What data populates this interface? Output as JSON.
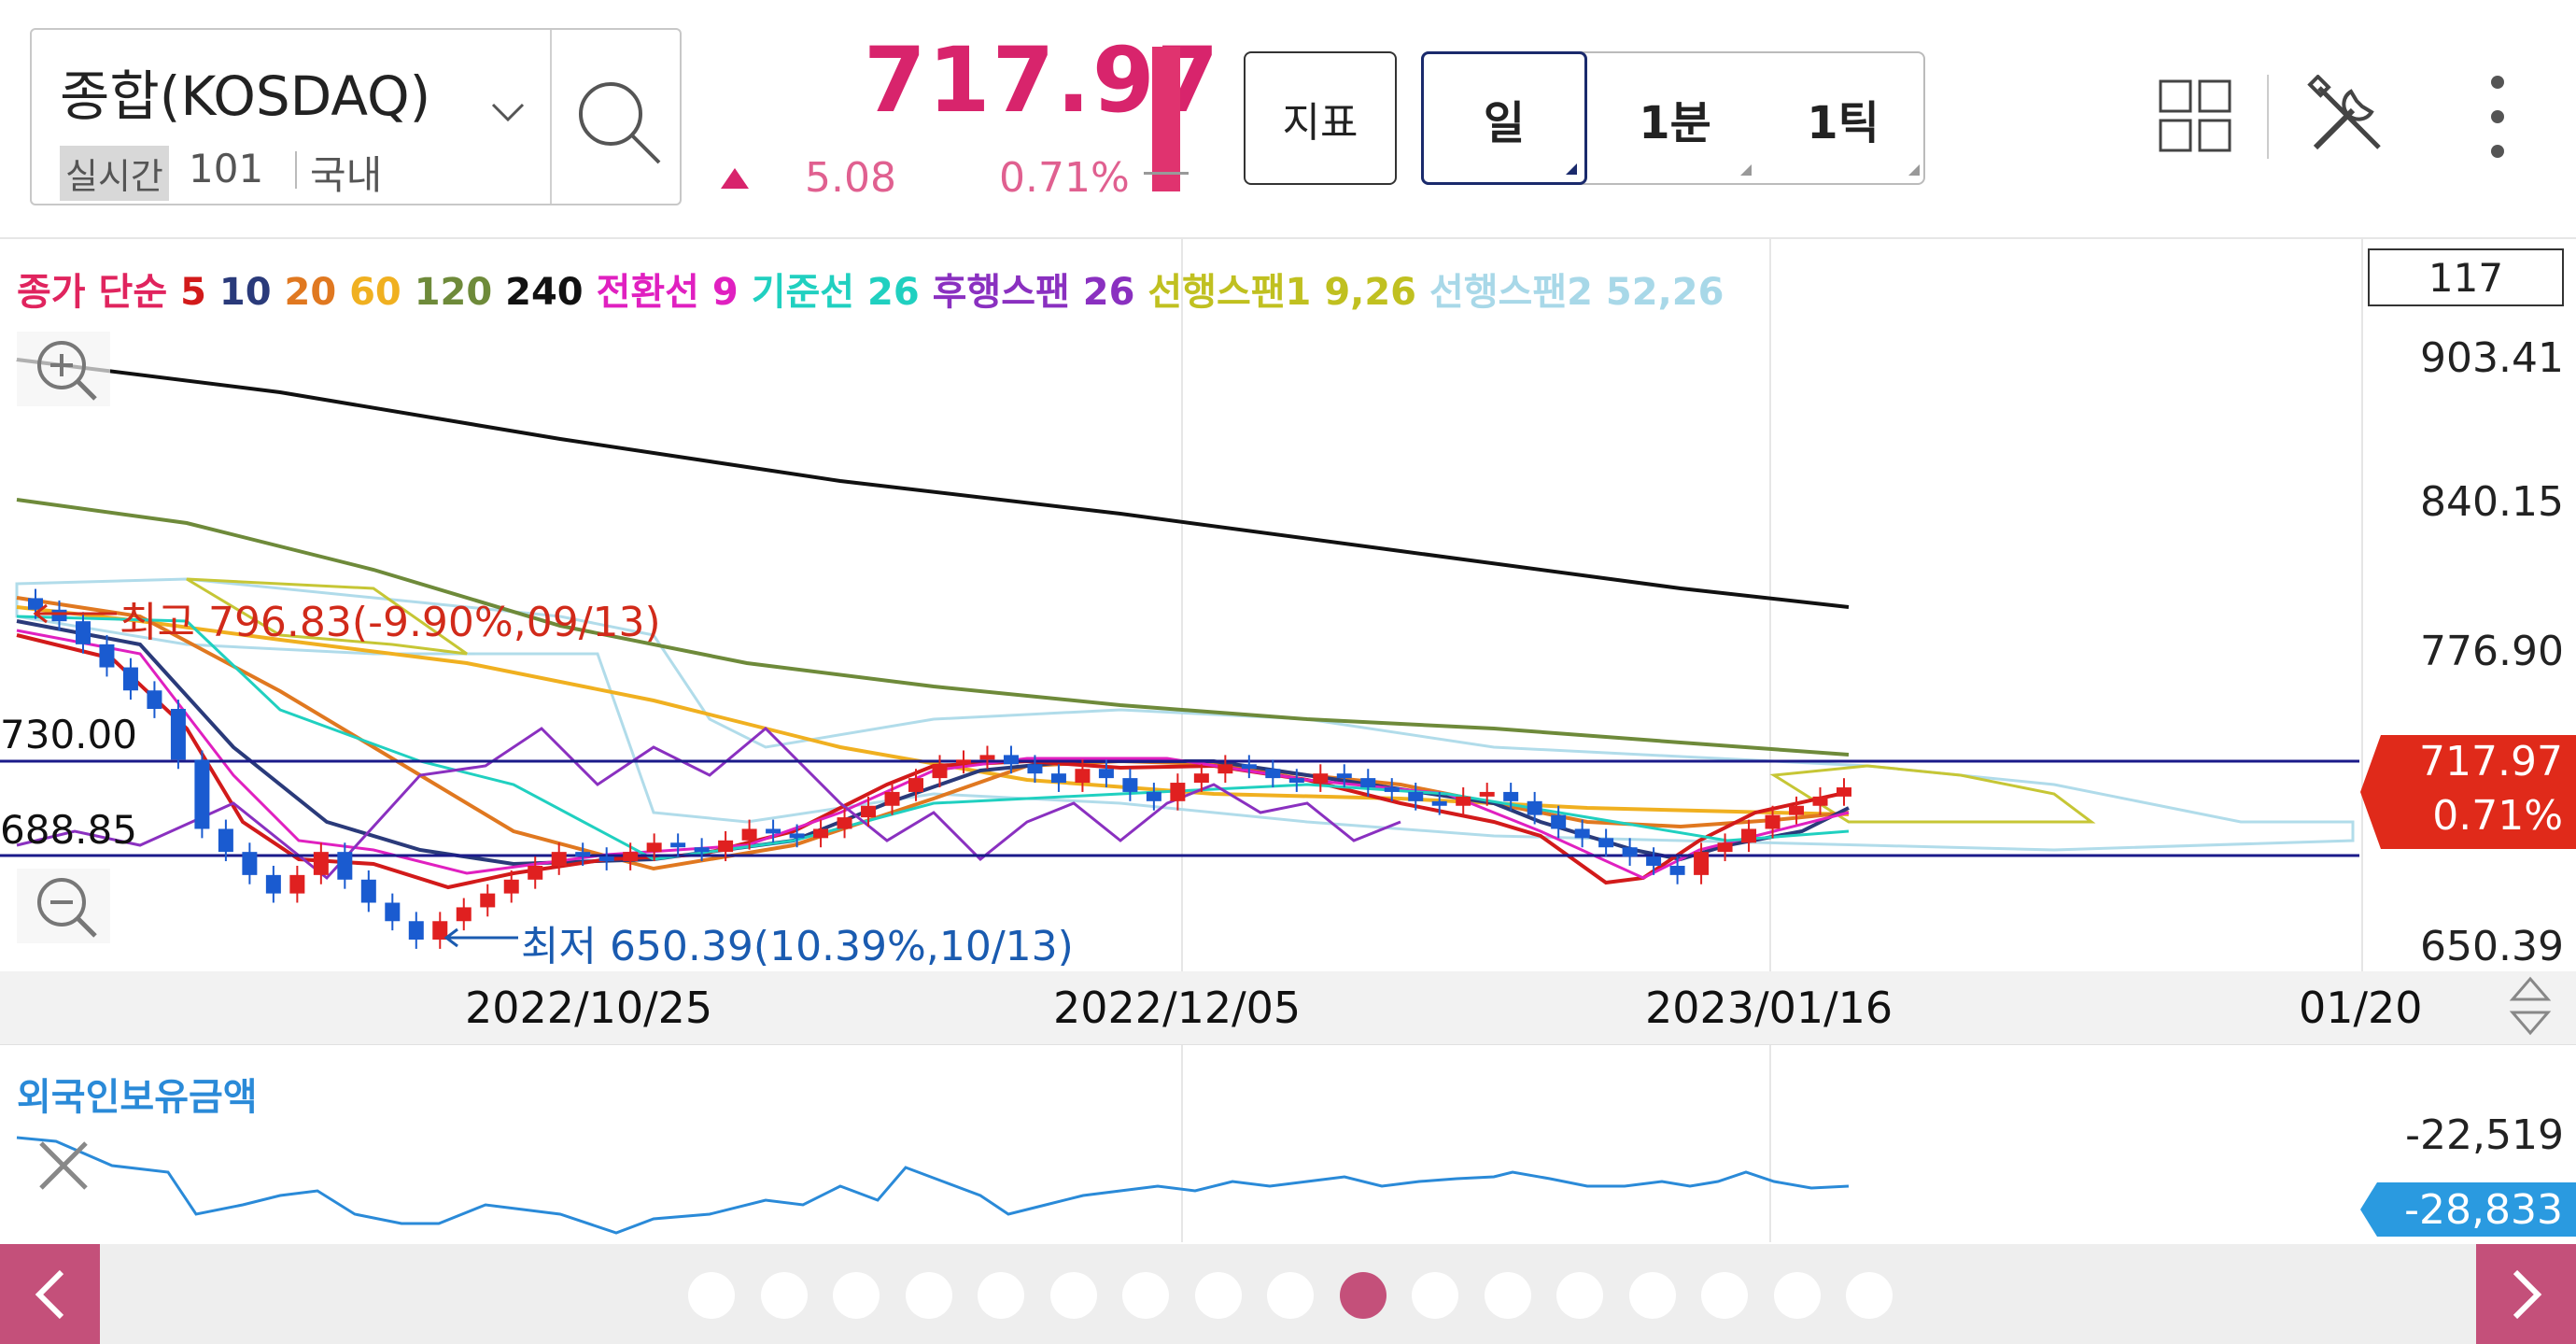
{
  "header": {
    "symbol_name": "종합(KOSDAQ)",
    "realtime_badge": "실시간",
    "realtime_count": "101",
    "market": "국내",
    "price": "717.97",
    "change_amount": "5.08",
    "change_percent": "0.71%",
    "indicator_button": "지표",
    "periods": [
      "일",
      "1분",
      "1틱"
    ],
    "selected_period": "일"
  },
  "legend": [
    {
      "text": "종가",
      "color": "#e0245e"
    },
    {
      "text": "단순",
      "color": "#e0245e"
    },
    {
      "text": "5",
      "color": "#d21a1a"
    },
    {
      "text": "10",
      "color": "#2a3a7a"
    },
    {
      "text": "20",
      "color": "#e07820"
    },
    {
      "text": "60",
      "color": "#f0b020"
    },
    {
      "text": "120",
      "color": "#6e8a3a"
    },
    {
      "text": "240",
      "color": "#111111"
    },
    {
      "text": "전환선 9",
      "color": "#e020c0"
    },
    {
      "text": "기준선 26",
      "color": "#20d0c0"
    },
    {
      "text": "후행스팬 26",
      "color": "#8a30c0"
    },
    {
      "text": "선행스팬1 9,26",
      "color": "#c0c020"
    },
    {
      "text": "선행스팬2 52,26",
      "color": "#a8d8e8"
    }
  ],
  "count_box": "117",
  "y_axis": [
    "903.41",
    "840.15",
    "776.90",
    "650.39"
  ],
  "current": {
    "price": "717.97",
    "percent": "0.71%"
  },
  "hlines": [
    "730.00",
    "688.85"
  ],
  "high_label": "최고 796.83(-9.90%,09/13)",
  "low_label": "최저 650.39(10.39%,10/13)",
  "x_axis": [
    "2022/10/25",
    "2022/12/05",
    "2023/01/16",
    "01/20"
  ],
  "sub_chart": {
    "title": "외국인보유금액",
    "max": "-22,519",
    "current": "-28,833"
  },
  "pager": {
    "count": 17,
    "active": 9
  },
  "colors": {
    "accent": "#d8246c",
    "up": "#e02020",
    "down": "#1a5bd0",
    "nav": "#c4507a"
  },
  "chart_data": {
    "type": "candlestick",
    "y_range": [
      650.39,
      903.41
    ],
    "closing_price": 717.97,
    "high": 796.83,
    "low": 650.39,
    "ohlc_close_estimates": [
      795,
      790,
      780,
      770,
      760,
      752,
      730,
      700,
      690,
      680,
      672,
      680,
      690,
      678,
      668,
      660,
      652,
      660,
      666,
      672,
      678,
      684,
      690,
      688,
      686,
      690,
      694,
      692,
      690,
      695,
      700,
      698,
      696,
      700,
      705,
      710,
      716,
      722,
      728,
      730,
      732,
      728,
      724,
      720,
      726,
      722,
      716,
      712,
      720,
      724,
      728,
      726,
      722,
      720,
      724,
      722,
      718,
      716,
      712,
      710,
      714,
      716,
      712,
      706,
      700,
      696,
      692,
      688,
      684,
      680,
      690,
      694,
      700,
      706,
      710,
      714,
      717.97
    ]
  }
}
